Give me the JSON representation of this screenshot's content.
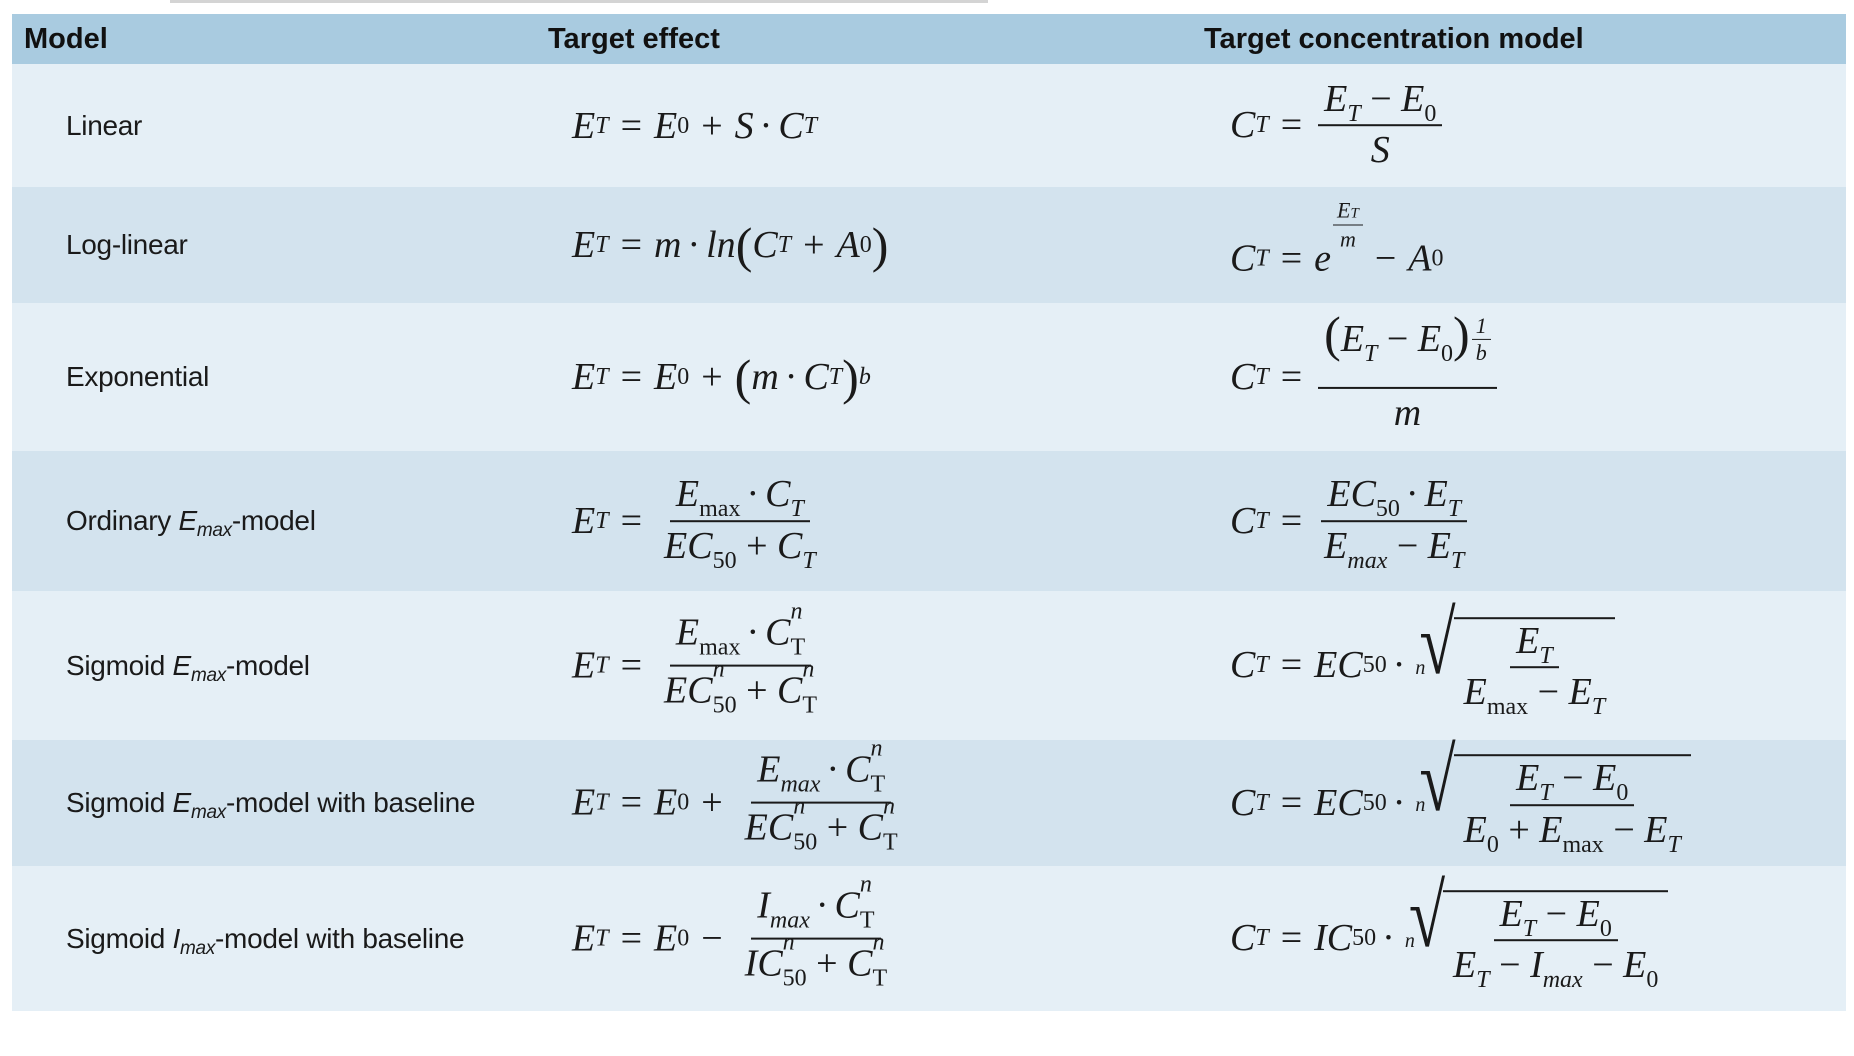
{
  "header": {
    "col_model": "Model",
    "col_target_effect": "Target effect",
    "col_target_concentration": "Target concentration model"
  },
  "rows": [
    {
      "model": "Linear",
      "effect": "E_T = E_0 + S · C_T",
      "concentration": "C_T = (E_T − E_0) / S"
    },
    {
      "model": "Log-linear",
      "effect": "E_T = m · ln(C_T + A_0)",
      "concentration": "C_T = e^(E_T/m) − A_0"
    },
    {
      "model": "Exponential",
      "effect": "E_T = E_0 + (m · C_T)^b",
      "concentration": "C_T = (E_T − E_0)^(1/b) / m"
    },
    {
      "model_prefix": "Ordinary ",
      "model_var": "E",
      "model_sub": "max",
      "model_suffix": "-model",
      "effect": "E_T = E_max · C_T / (EC_50 + C_T)",
      "concentration": "C_T = EC_50 · E_T / (E_max − E_T)"
    },
    {
      "model_prefix": "Sigmoid ",
      "model_var": "E",
      "model_sub": "max",
      "model_suffix": "-model",
      "effect": "E_T = E_max · C_T^n / (EC_50^n + C_T^n)",
      "concentration": "C_T = EC_50 · nroot(E_T / (E_max − E_T))"
    },
    {
      "model_prefix": "Sigmoid ",
      "model_var": "E",
      "model_sub": "max",
      "model_suffix": "-model with baseline",
      "effect": "E_T = E_0 + E_max · C_T^n / (EC_50^n + C_T^n)",
      "concentration": "C_T = EC_50 · nroot((E_T − E_0) / (E_0 + E_max − E_T))"
    },
    {
      "model_prefix": "Sigmoid ",
      "model_var": "I",
      "model_sub": "max",
      "model_suffix": "-model with baseline",
      "effect": "E_T = E_0 − I_max · C_T^n / (IC_50^n + C_T^n)",
      "concentration": "C_T = IC_50 · nroot((E_T − E_0) / (E_T − I_max − E_0))"
    }
  ],
  "colors": {
    "header_bg": "#a9cbe0",
    "row_light": "#e5eff6",
    "row_dark": "#d3e3ee"
  }
}
